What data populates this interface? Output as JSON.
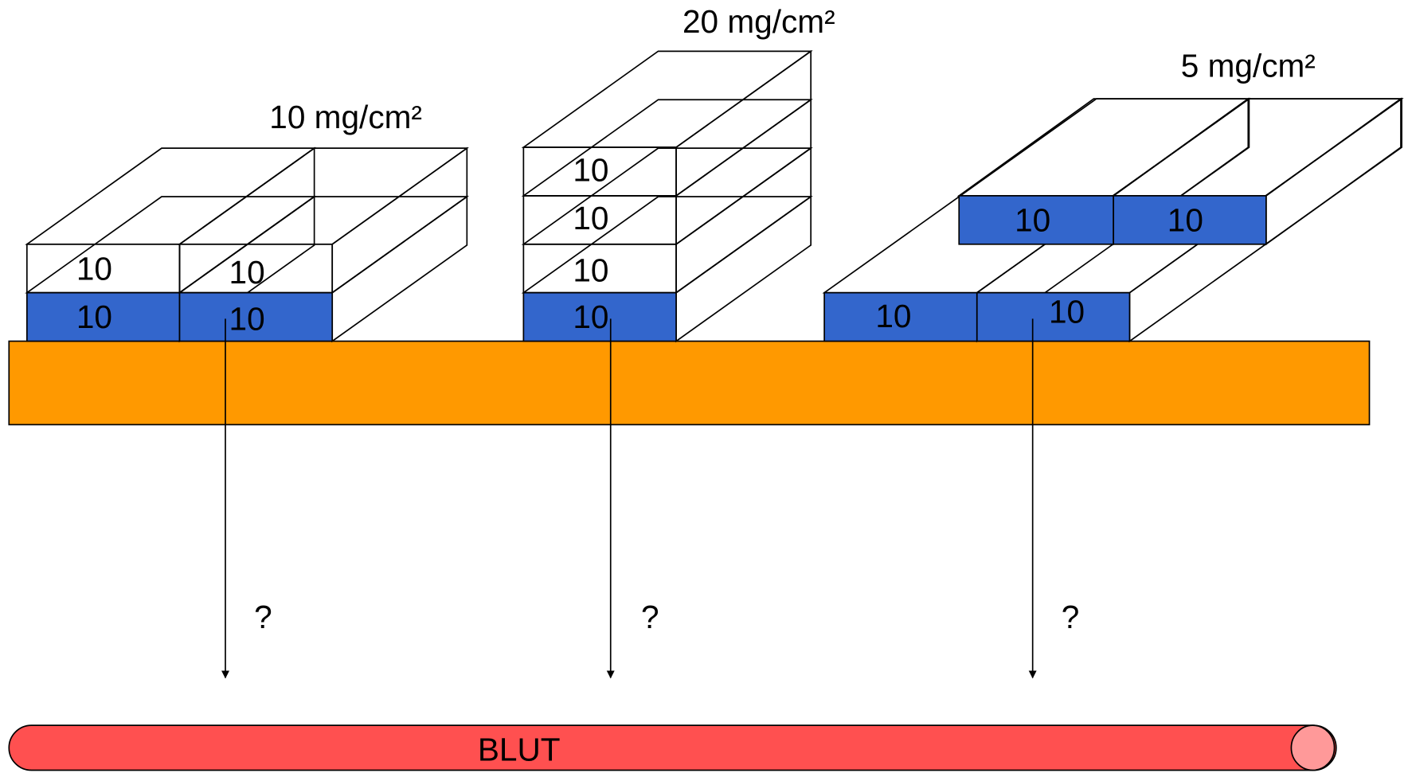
{
  "groups": [
    {
      "label": "10 mg/cm²",
      "cells": [
        "10",
        "10",
        "10",
        "10"
      ],
      "question": "?"
    },
    {
      "label": "20 mg/cm²",
      "cells": [
        "10",
        "10",
        "10",
        "10"
      ],
      "question": "?"
    },
    {
      "label": "5 mg/cm²",
      "cells": [
        "10",
        "10",
        "10",
        "10"
      ],
      "question": "?"
    }
  ],
  "blood": "BLUT"
}
